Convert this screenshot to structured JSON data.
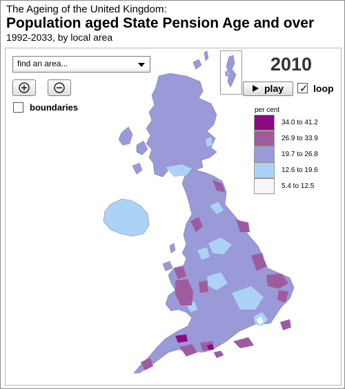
{
  "header": {
    "supertitle": "The Ageing of the United Kingdom:",
    "title": "Population aged State Pension Age and over",
    "subtitle": "1992-2033, by local area"
  },
  "controls": {
    "search_value": "find an area...",
    "zoom_in_icon": "plus-circle-icon",
    "zoom_out_icon": "minus-circle-icon",
    "boundaries_label": "boundaries",
    "boundaries_checked": false,
    "year": "2010",
    "play_label": "play",
    "loop_label": "loop",
    "loop_checked": true
  },
  "legend": {
    "title": "per cent",
    "classes": [
      {
        "label": "34.0 to 41.2",
        "color": "#8b0a80"
      },
      {
        "label": "26.9 to 33.9",
        "color": "#9e5c9e"
      },
      {
        "label": "19.7 to 26.8",
        "color": "#9a9ad8"
      },
      {
        "label": "12.6 to 19.6",
        "color": "#acd3f5"
      },
      {
        "label": "5.4 to 12.5",
        "color": "#f6f6f8"
      }
    ]
  },
  "map": {
    "region": "United Kingdom",
    "base_color": "#9a9ad8",
    "border_color": "#7c7cb8"
  }
}
